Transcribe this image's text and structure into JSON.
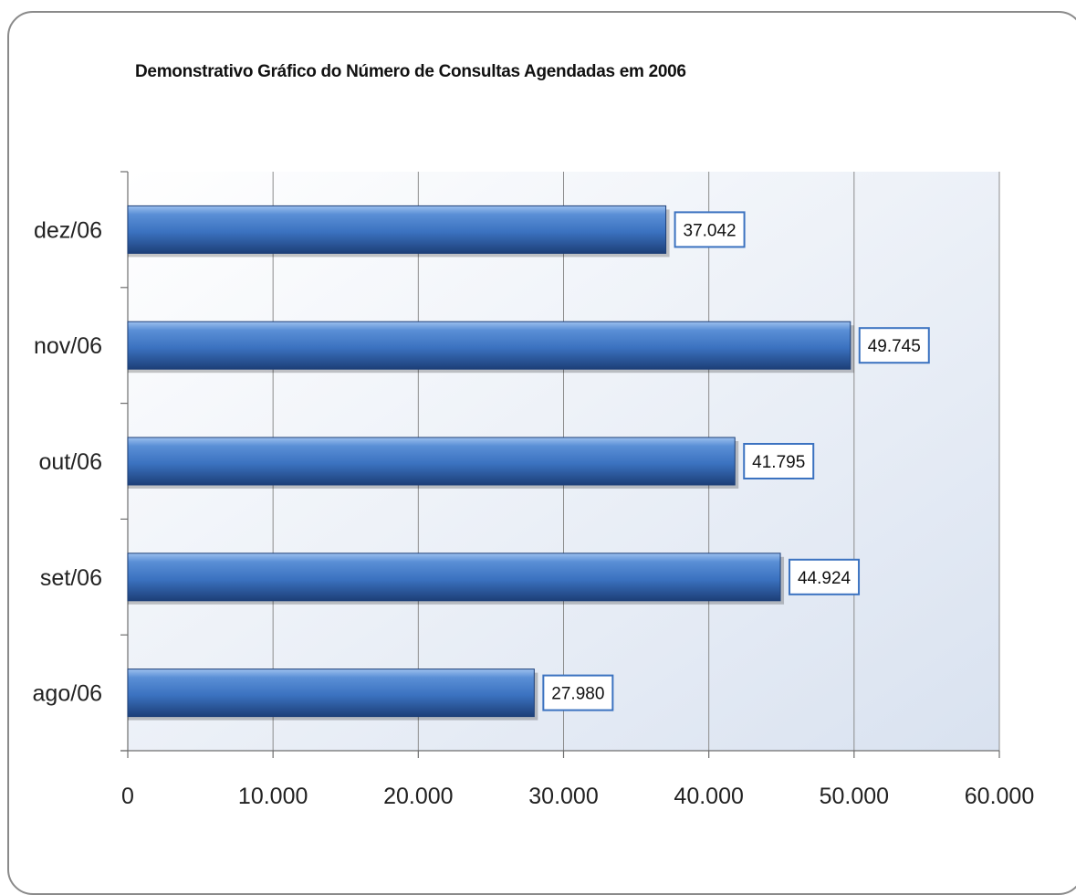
{
  "chart_data": {
    "type": "bar",
    "orientation": "horizontal",
    "title": "Demonstrativo Gráfico do Número de Consultas Agendadas em 2006",
    "categories": [
      "dez/06",
      "nov/06",
      "out/06",
      "set/06",
      "ago/06"
    ],
    "values": [
      37042,
      49745,
      41795,
      44924,
      27980
    ],
    "data_labels": [
      "37.042",
      "49.745",
      "41.795",
      "44.924",
      "27.980"
    ],
    "x_ticks": [
      "0",
      "10.000",
      "20.000",
      "30.000",
      "40.000",
      "50.000",
      "60.000"
    ],
    "xlim": [
      0,
      60000
    ],
    "grid": true,
    "legend": "none",
    "colors": {
      "bar": "#3b72c0",
      "bar_dark": "#1d3f78",
      "bar_light": "#9cc0ee",
      "label_border": "#3b72c0",
      "plot_bg_start": "#ffffff",
      "plot_bg_end": "#d9e2f0"
    }
  }
}
